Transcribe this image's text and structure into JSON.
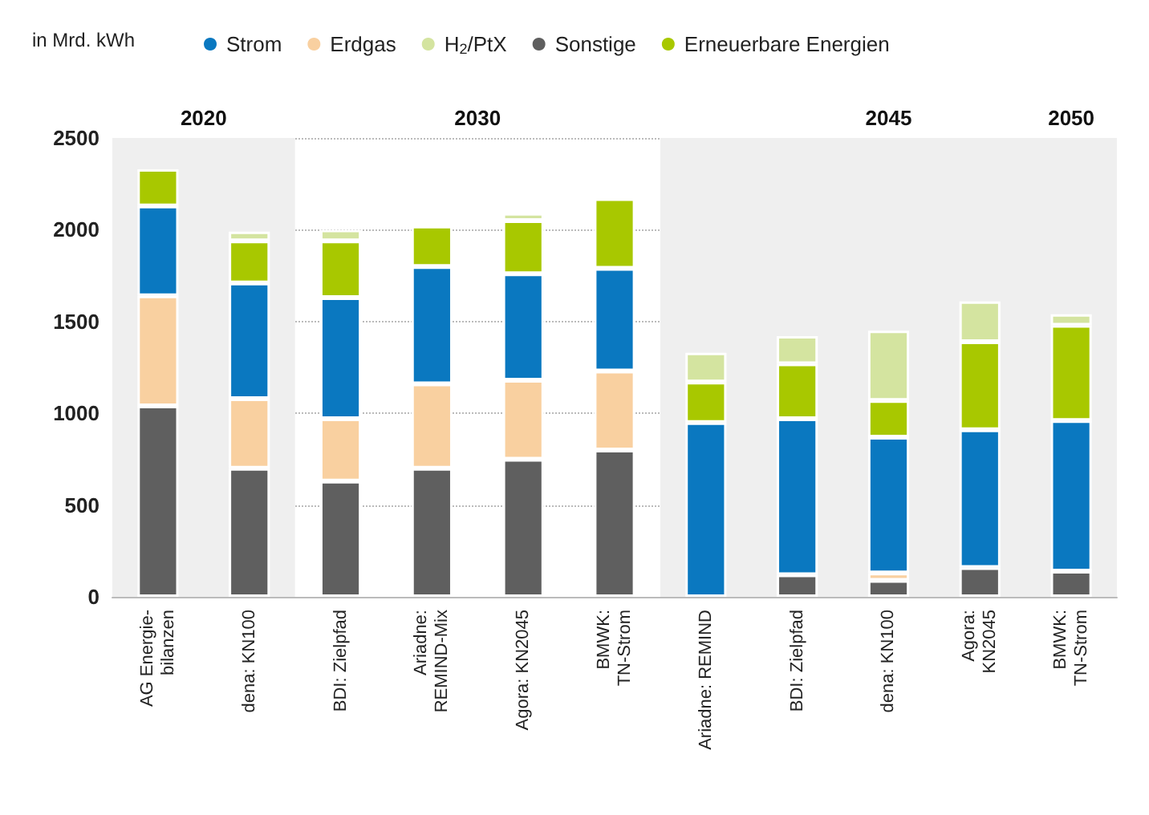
{
  "chart_data": {
    "type": "bar",
    "stacked": true,
    "ylabel": "in Mrd. kWh",
    "categories": [
      "AG Energie-\nbilanzen",
      "dena: KN100",
      "BDI: Zielpfad",
      "Ariadne:\nREMIND-Mix",
      "Agora: KN2045",
      "BMWK:\nTN-Strom",
      "Ariadne: REMIND",
      "BDI: Zielpfad",
      "dena: KN100",
      "Agora:\nKN2045",
      "BMWK:\nTN-Strom"
    ],
    "series": [
      {
        "name": "Sonstige",
        "color": "#5f5f5f",
        "values": [
          1040,
          700,
          630,
          700,
          750,
          800,
          0,
          120,
          90,
          160,
          140
        ]
      },
      {
        "name": "Erdgas",
        "color": "#f9d0a0",
        "values": [
          600,
          380,
          340,
          460,
          430,
          430,
          0,
          0,
          40,
          0,
          0
        ]
      },
      {
        "name": "Strom",
        "color": "#0a78c0",
        "values": [
          490,
          630,
          660,
          640,
          580,
          560,
          950,
          850,
          740,
          750,
          820
        ]
      },
      {
        "name": "Erneuerbare Energien",
        "color": "#a8c800",
        "values": [
          200,
          230,
          310,
          220,
          290,
          380,
          220,
          300,
          200,
          480,
          520
        ]
      },
      {
        "name": "H$_{2}$/PtX",
        "color": "#d4e4a0",
        "values": [
          0,
          50,
          60,
          0,
          40,
          0,
          160,
          150,
          380,
          220,
          60
        ]
      }
    ],
    "ylim": [
      0,
      2500
    ],
    "yticks": [
      0,
      500,
      1000,
      1500,
      2000,
      2500
    ],
    "grid": "y",
    "legend": "top",
    "annotations": [
      "2020",
      "2030",
      "2045",
      "2050"
    ]
  }
}
